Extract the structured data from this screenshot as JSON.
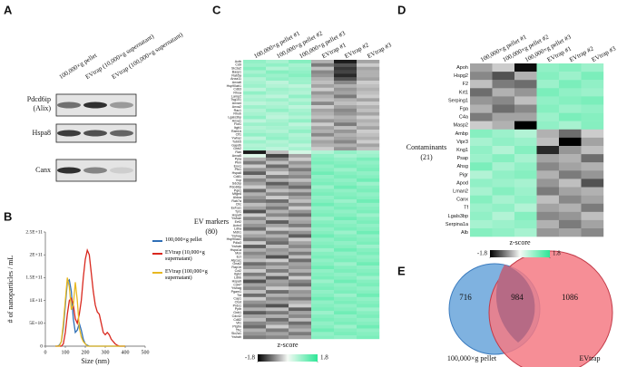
{
  "panel_labels": [
    "A",
    "B",
    "C",
    "D",
    "E"
  ],
  "blot": {
    "lanes": [
      "100,000×g pellet",
      "EVtrap (10,000×g supernatant)",
      "EVtrap (100,000×g supernatant)"
    ],
    "rows": [
      "Pdcd6ip",
      "(Alix)",
      "Hspa8",
      "Canx"
    ]
  },
  "chart_data": {
    "type": "line",
    "ylabel": "# of nanoparticles / mL",
    "xlabel": "Size (nm)",
    "x": [
      50,
      60,
      70,
      80,
      90,
      100,
      110,
      120,
      130,
      140,
      150,
      160,
      170,
      180,
      190,
      200,
      210,
      220,
      230,
      240,
      250,
      260,
      270,
      280,
      290,
      300,
      310,
      320,
      330,
      340,
      350,
      360,
      370,
      380,
      390,
      400
    ],
    "series": [
      {
        "name": "100,000×g pellet",
        "color": "#2f6fb6",
        "values": [
          0,
          0,
          2000000000.0,
          10000000000.0,
          40000000000.0,
          90000000000.0,
          140000000000.0,
          145000000000.0,
          120000000000.0,
          60000000000.0,
          30000000000.0,
          35000000000.0,
          50000000000.0,
          35000000000.0,
          15000000000.0,
          5000000000.0,
          2000000000.0,
          0,
          0,
          0,
          0,
          0,
          0,
          0,
          0,
          0,
          0,
          0,
          0,
          0,
          0,
          0,
          0,
          0,
          0,
          0
        ]
      },
      {
        "name": "EVtrap (10,000×g supernatant)",
        "color": "#d9281e",
        "values": [
          0,
          0,
          0,
          0,
          5000000000.0,
          30000000000.0,
          70000000000.0,
          100000000000.0,
          105000000000.0,
          90000000000.0,
          60000000000.0,
          50000000000.0,
          70000000000.0,
          100000000000.0,
          150000000000.0,
          190000000000.0,
          210000000000.0,
          200000000000.0,
          160000000000.0,
          120000000000.0,
          90000000000.0,
          75000000000.0,
          70000000000.0,
          50000000000.0,
          30000000000.0,
          25000000000.0,
          30000000000.0,
          25000000000.0,
          15000000000.0,
          10000000000.0,
          5000000000.0,
          2000000000.0,
          0,
          0,
          0,
          0
        ]
      },
      {
        "name": "EVtrap (100,000×g supernatant)",
        "color": "#e8b820",
        "values": [
          0,
          0,
          0,
          10000000000.0,
          50000000000.0,
          100000000000.0,
          150000000000.0,
          130000000000.0,
          80000000000.0,
          90000000000.0,
          140000000000.0,
          100000000000.0,
          40000000000.0,
          20000000000.0,
          10000000000.0,
          5000000000.0,
          0,
          0,
          0,
          0,
          0,
          0,
          0,
          0,
          0,
          0,
          0,
          0,
          0,
          0,
          0,
          0,
          0,
          0,
          0,
          0
        ]
      }
    ],
    "xlim": [
      0,
      500
    ],
    "xticks": [
      0,
      100,
      200,
      300,
      400,
      500
    ],
    "ylim": [
      0,
      250000000000.0
    ],
    "yticks": [
      0,
      {
        "value": 50000000000.0,
        "label": "5E+10"
      },
      {
        "value": 100000000000.0,
        "label": "1E+11"
      },
      {
        "value": 150000000000.0,
        "label": "1.5E+11"
      },
      {
        "value": 200000000000.0,
        "label": "2E+11"
      },
      {
        "value": 250000000000.0,
        "label": "2.5E+11"
      }
    ]
  },
  "heatmap_c": {
    "group": [
      "EV markers",
      "(80)"
    ],
    "colorbar_label": "z-score",
    "colorbar_ticks": [
      -1.8,
      1.8
    ],
    "columns": [
      "100,000×g pellet #1",
      "100,000×g pellet #2",
      "100,000×g pellet #3",
      "EVtrap #1",
      "EVtrap #2",
      "EVtrap #3"
    ],
    "rows": [
      "Actb",
      "Cd9",
      "Slc3a2",
      "Basp1",
      "Rab5a",
      "Anxa11",
      "Anxa6",
      "Hsp90ab1",
      "Cd63",
      "Rhoa",
      "Lamp2",
      "Tsg101",
      "Anxa4",
      "Anxa2",
      "Rac1",
      "Rhob",
      "Lgals3bp",
      "Anxa1",
      "Flot1",
      "Itgb1",
      "Rab1A",
      "Cfl1",
      "Ywhaz",
      "Tubb5",
      "Gapdh",
      "Gnb2",
      "Ran",
      "Anxa5",
      "Ppia",
      "Pkm",
      "Eno1",
      "Pfn1",
      "Hspa8",
      "Cd81",
      "Vcp",
      "Sdcbp",
      "Pdcd6ip",
      "Pgk1",
      "Mfge8",
      "Aldoa",
      "Rab7a",
      "Cltc",
      "Eef1a1",
      "Tpi1",
      "Hspa5",
      "Ywhae",
      "Eef2",
      "Actn4",
      "Ldha",
      "Mdh1",
      "Ywhaq",
      "Hsp90aa1",
      "Pdia3",
      "Ywhab",
      "Hspa1a",
      "Msn",
      "Ezr",
      "Atp1a1",
      "Gnai2",
      "Rap1b",
      "Cct2",
      "Itgb2",
      "Ldhb",
      "Hspa9",
      "Cd47",
      "Ywhag",
      "Pgam1",
      "Tkt",
      "Cap1",
      "Ctsd",
      "Prdx1",
      "Ppib",
      "Gnb1",
      "Cdc42",
      "Cd82",
      "Vil1",
      "Ptgfrn",
      "Tfrc",
      "Slc2a1",
      "Ywhah"
    ],
    "values": [
      [
        0.9,
        0.7,
        1.0,
        -0.5,
        -1.6,
        -0.6
      ],
      [
        0.8,
        0.9,
        0.7,
        -0.9,
        -1.2,
        -0.3
      ],
      [
        1.0,
        0.6,
        0.8,
        -0.4,
        -1.4,
        -0.6
      ],
      [
        0.7,
        1.0,
        0.9,
        -0.8,
        -1.3,
        -0.5
      ],
      [
        0.9,
        0.8,
        1.0,
        -0.7,
        -1.5,
        -0.5
      ],
      [
        0.6,
        0.9,
        0.8,
        -0.5,
        -1.2,
        -0.6
      ],
      [
        0.7,
        0.5,
        0.8,
        -0.4,
        -0.8,
        -0.3
      ],
      [
        0.8,
        0.6,
        0.5,
        -0.6,
        -0.5,
        -0.4
      ],
      [
        0.5,
        0.8,
        0.7,
        -0.3,
        -0.7,
        -0.5
      ],
      [
        0.9,
        0.7,
        0.6,
        -0.7,
        -0.6,
        -0.4
      ],
      [
        0.6,
        0.5,
        0.9,
        -0.5,
        -0.9,
        -0.3
      ],
      [
        0.7,
        0.8,
        0.6,
        -0.4,
        -0.5,
        -0.6
      ],
      [
        0.5,
        0.6,
        0.8,
        -0.8,
        -0.4,
        -0.3
      ],
      [
        0.8,
        0.7,
        0.5,
        -0.3,
        -0.6,
        -0.5
      ],
      [
        0.6,
        0.9,
        0.7,
        -0.6,
        -0.8,
        -0.4
      ],
      [
        0.7,
        0.6,
        0.8,
        -0.5,
        -0.7,
        -0.6
      ],
      [
        0.9,
        0.5,
        0.6,
        -0.4,
        -0.5,
        -0.3
      ],
      [
        0.5,
        0.7,
        0.9,
        -0.7,
        -0.6,
        -0.5
      ],
      [
        0.8,
        0.8,
        0.5,
        -0.3,
        -0.9,
        -0.4
      ],
      [
        0.6,
        0.7,
        0.7,
        -0.6,
        -0.4,
        -0.6
      ],
      [
        0.7,
        0.6,
        0.9,
        -0.5,
        -0.7,
        -0.3
      ],
      [
        0.9,
        0.8,
        0.6,
        -0.8,
        -0.5,
        -0.4
      ],
      [
        0.5,
        0.9,
        0.7,
        -0.4,
        -0.6,
        -0.5
      ],
      [
        0.8,
        0.6,
        0.8,
        -0.6,
        -0.8,
        -0.3
      ],
      [
        0.6,
        0.7,
        0.5,
        -0.5,
        -0.5,
        -0.6
      ],
      [
        0.7,
        0.5,
        0.7,
        -0.3,
        -0.7,
        -0.4
      ],
      [
        -1.6,
        -0.4,
        0.3,
        0.6,
        0.9,
        0.7
      ],
      [
        0.2,
        -1.3,
        -0.6,
        0.9,
        0.7,
        0.8
      ],
      [
        -0.5,
        -0.8,
        -0.3,
        1.0,
        0.9,
        1.1
      ],
      [
        -0.9,
        -0.4,
        -0.7,
        1.1,
        1.0,
        0.9
      ],
      [
        -0.3,
        -1.0,
        -0.5,
        0.9,
        1.1,
        1.0
      ],
      [
        -0.7,
        -0.6,
        -0.9,
        1.0,
        0.8,
        1.1
      ],
      [
        -1.1,
        -0.3,
        -0.6,
        1.2,
        1.0,
        0.9
      ],
      [
        -0.4,
        -0.9,
        -0.8,
        0.9,
        1.1,
        1.0
      ],
      [
        -0.8,
        -0.5,
        -0.4,
        1.0,
        0.9,
        1.2
      ],
      [
        -0.6,
        -1.1,
        -0.7,
        1.1,
        1.0,
        0.8
      ],
      [
        -0.3,
        -0.7,
        -1.0,
        0.8,
        1.2,
        1.0
      ],
      [
        -1.0,
        -0.4,
        -0.5,
        1.0,
        0.9,
        1.1
      ],
      [
        -0.5,
        -0.8,
        -0.9,
        1.1,
        1.0,
        0.9
      ],
      [
        -0.7,
        -0.3,
        -0.6,
        0.9,
        1.1,
        1.0
      ],
      [
        -0.9,
        -1.0,
        -0.4,
        1.0,
        0.8,
        1.2
      ],
      [
        -0.4,
        -0.6,
        -0.8,
        1.2,
        1.0,
        0.9
      ],
      [
        -0.6,
        -0.9,
        -0.3,
        0.9,
        1.1,
        1.0
      ],
      [
        -1.2,
        -0.5,
        -0.7,
        1.0,
        0.9,
        1.1
      ],
      [
        -0.3,
        -0.8,
        -1.0,
        1.1,
        1.0,
        0.8
      ],
      [
        -0.8,
        -0.4,
        -0.5,
        0.8,
        1.2,
        1.0
      ],
      [
        -0.5,
        -1.1,
        -0.6,
        1.0,
        0.9,
        1.1
      ],
      [
        -0.7,
        -0.6,
        -0.9,
        1.1,
        1.0,
        0.9
      ],
      [
        -1.0,
        -0.3,
        -0.4,
        0.9,
        1.1,
        1.0
      ],
      [
        -0.4,
        -0.9,
        -0.7,
        1.0,
        0.8,
        1.2
      ],
      [
        -0.6,
        -0.5,
        -1.1,
        1.2,
        1.0,
        0.9
      ],
      [
        -0.9,
        -0.8,
        -0.3,
        0.9,
        1.1,
        1.0
      ],
      [
        -0.3,
        -1.0,
        -0.6,
        1.0,
        0.9,
        1.1
      ],
      [
        -1.1,
        -0.4,
        -0.8,
        1.1,
        1.0,
        0.8
      ],
      [
        -0.5,
        -0.7,
        -0.5,
        0.8,
        1.2,
        1.0
      ],
      [
        -0.8,
        -0.6,
        -0.9,
        1.0,
        0.9,
        1.1
      ],
      [
        -0.6,
        -1.2,
        -0.4,
        1.1,
        1.0,
        0.9
      ],
      [
        -0.4,
        -0.3,
        -1.0,
        0.9,
        1.1,
        1.0
      ],
      [
        -1.0,
        -0.8,
        -0.6,
        1.0,
        0.8,
        1.2
      ],
      [
        -0.7,
        -0.5,
        -0.7,
        1.2,
        1.0,
        0.9
      ],
      [
        -0.3,
        -0.9,
        -0.5,
        0.9,
        1.1,
        1.0
      ],
      [
        -0.9,
        -0.4,
        -0.9,
        1.0,
        0.9,
        1.1
      ],
      [
        -0.5,
        -1.1,
        -0.3,
        1.1,
        1.0,
        0.8
      ],
      [
        -1.2,
        -0.6,
        -0.8,
        0.8,
        1.2,
        1.0
      ],
      [
        -0.6,
        -0.7,
        -1.0,
        1.0,
        0.9,
        1.1
      ],
      [
        -0.8,
        -0.3,
        -0.4,
        1.1,
        1.0,
        0.9
      ],
      [
        -0.4,
        -1.0,
        -0.7,
        0.9,
        1.1,
        1.0
      ],
      [
        -1.0,
        -0.5,
        -0.6,
        1.0,
        0.8,
        1.2
      ],
      [
        -0.3,
        -0.8,
        -0.9,
        1.2,
        1.0,
        0.9
      ],
      [
        -0.7,
        -0.6,
        -0.5,
        0.9,
        1.1,
        1.0
      ],
      [
        -0.9,
        -1.2,
        -0.3,
        1.0,
        0.9,
        1.1
      ],
      [
        -0.5,
        -0.4,
        -1.1,
        1.1,
        1.0,
        0.8
      ],
      [
        -1.1,
        -0.9,
        -0.6,
        0.8,
        1.2,
        1.0
      ],
      [
        -0.6,
        -0.5,
        -0.8,
        1.0,
        0.9,
        1.1
      ],
      [
        -0.4,
        -1.0,
        -0.4,
        1.1,
        1.0,
        0.9
      ],
      [
        -0.8,
        -0.7,
        -1.0,
        0.9,
        1.1,
        1.0
      ],
      [
        -1.0,
        -0.3,
        -0.7,
        1.0,
        0.8,
        1.2
      ],
      [
        -0.5,
        -0.9,
        -0.5,
        1.2,
        1.0,
        0.9
      ],
      [
        -0.7,
        -0.6,
        -0.9,
        0.9,
        1.1,
        1.0
      ],
      [
        -0.9,
        -0.8,
        -0.6,
        1.0,
        0.9,
        1.1
      ]
    ]
  },
  "heatmap_d": {
    "group": [
      "Contaminants",
      "(21)"
    ],
    "colorbar_label": "z-score",
    "colorbar_ticks": [
      -1.8,
      1.8
    ],
    "columns": [
      "100,000×g pellet #1",
      "100,000×g pellet #2",
      "100,000×g pellet #3",
      "EVtrap #1",
      "EVtrap #2",
      "EVtrap #3"
    ],
    "rows": [
      "Apoh",
      "Hspg2",
      "F2",
      "Krt1",
      "Serping1",
      "Fga",
      "C4a",
      "Masp2",
      "Ambp",
      "Vipr3",
      "Kng1",
      "Psap",
      "Ahsg",
      "Pigr",
      "Apod",
      "Lman2",
      "Canx",
      "Tf",
      "Lgals3bp",
      "Serpina1a",
      "Alb"
    ],
    "values": [
      [
        -0.6,
        -0.3,
        -1.7,
        0.9,
        1.0,
        0.8
      ],
      [
        -0.8,
        -1.2,
        -0.5,
        1.0,
        0.8,
        1.1
      ],
      [
        -0.4,
        -0.9,
        -1.0,
        0.8,
        1.1,
        0.9
      ],
      [
        -1.0,
        -0.5,
        -0.7,
        1.1,
        0.9,
        0.8
      ],
      [
        -0.7,
        -0.8,
        -0.4,
        0.9,
        1.0,
        1.1
      ],
      [
        -0.5,
        -1.0,
        -0.8,
        1.0,
        0.8,
        0.9
      ],
      [
        -0.9,
        -0.6,
        -0.6,
        0.8,
        1.1,
        1.0
      ],
      [
        -0.3,
        -0.5,
        -1.8,
        0.9,
        0.7,
        1.0
      ],
      [
        1.0,
        0.8,
        0.6,
        -0.5,
        -1.0,
        -0.3
      ],
      [
        0.7,
        0.9,
        0.8,
        -0.4,
        -1.8,
        -0.6
      ],
      [
        0.9,
        0.6,
        1.0,
        -1.5,
        -0.7,
        -0.4
      ],
      [
        0.8,
        1.0,
        0.7,
        -0.6,
        -0.5,
        -1.0
      ],
      [
        1.1,
        0.7,
        0.9,
        -0.8,
        -0.6,
        -0.5
      ],
      [
        0.6,
        0.9,
        1.0,
        -0.5,
        -0.9,
        -0.7
      ],
      [
        0.9,
        0.8,
        0.7,
        -0.7,
        -0.4,
        -1.2
      ],
      [
        0.7,
        1.0,
        0.8,
        -0.9,
        -0.6,
        -0.5
      ],
      [
        1.0,
        0.7,
        0.9,
        -0.4,
        -0.8,
        -0.6
      ],
      [
        0.8,
        0.9,
        0.6,
        -0.6,
        -0.5,
        -0.9
      ],
      [
        0.9,
        0.6,
        1.0,
        -0.8,
        -0.7,
        -0.4
      ],
      [
        0.7,
        0.8,
        0.9,
        -0.5,
        -0.9,
        -0.6
      ],
      [
        1.0,
        0.9,
        0.7,
        -0.7,
        -0.6,
        -0.8
      ]
    ]
  },
  "venn": {
    "left_only": "716",
    "both": "984",
    "right_only": "1086",
    "left_label": "100,000×g pellet",
    "right_label": "EVtrap"
  }
}
